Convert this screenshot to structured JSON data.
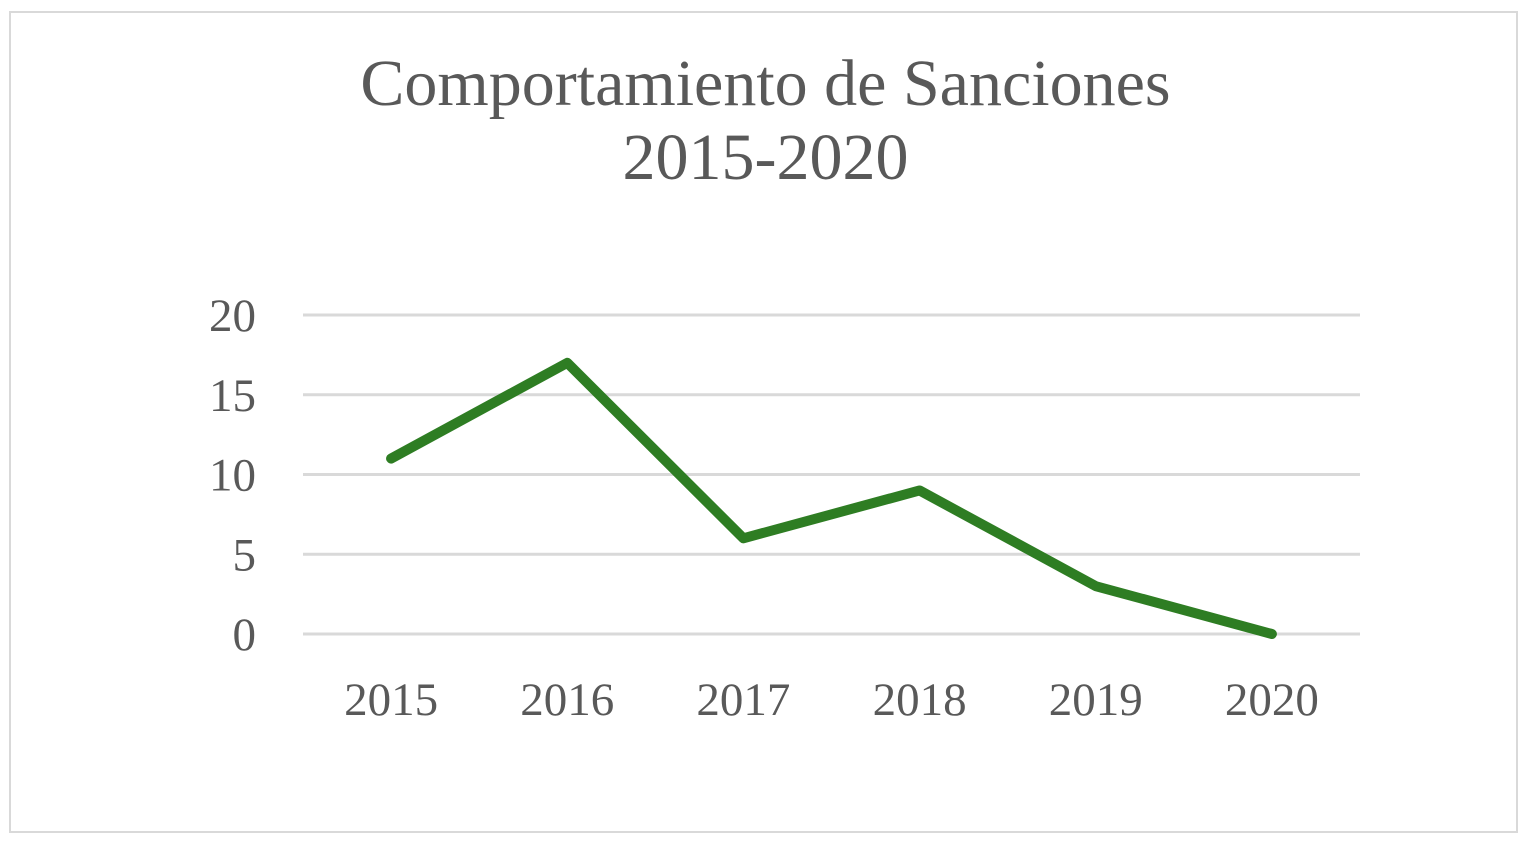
{
  "chart_data": {
    "type": "line",
    "title": "Comportamiento de Sanciones 2015-2020",
    "title_lines": [
      "Comportamiento de Sanciones",
      "2015-2020"
    ],
    "categories": [
      "2015",
      "2016",
      "2017",
      "2018",
      "2019",
      "2020"
    ],
    "series": [
      {
        "values": [
          11,
          17,
          6,
          9,
          3,
          0
        ],
        "color": "#2e7d23"
      }
    ],
    "ylim": [
      0,
      20
    ],
    "yticks": [
      0,
      5,
      10,
      15,
      20
    ],
    "ytick_labels": [
      "0",
      "5",
      "10",
      "15",
      "20"
    ],
    "grid": true,
    "gridline_color": "#d9d9d9",
    "legend": "none"
  }
}
